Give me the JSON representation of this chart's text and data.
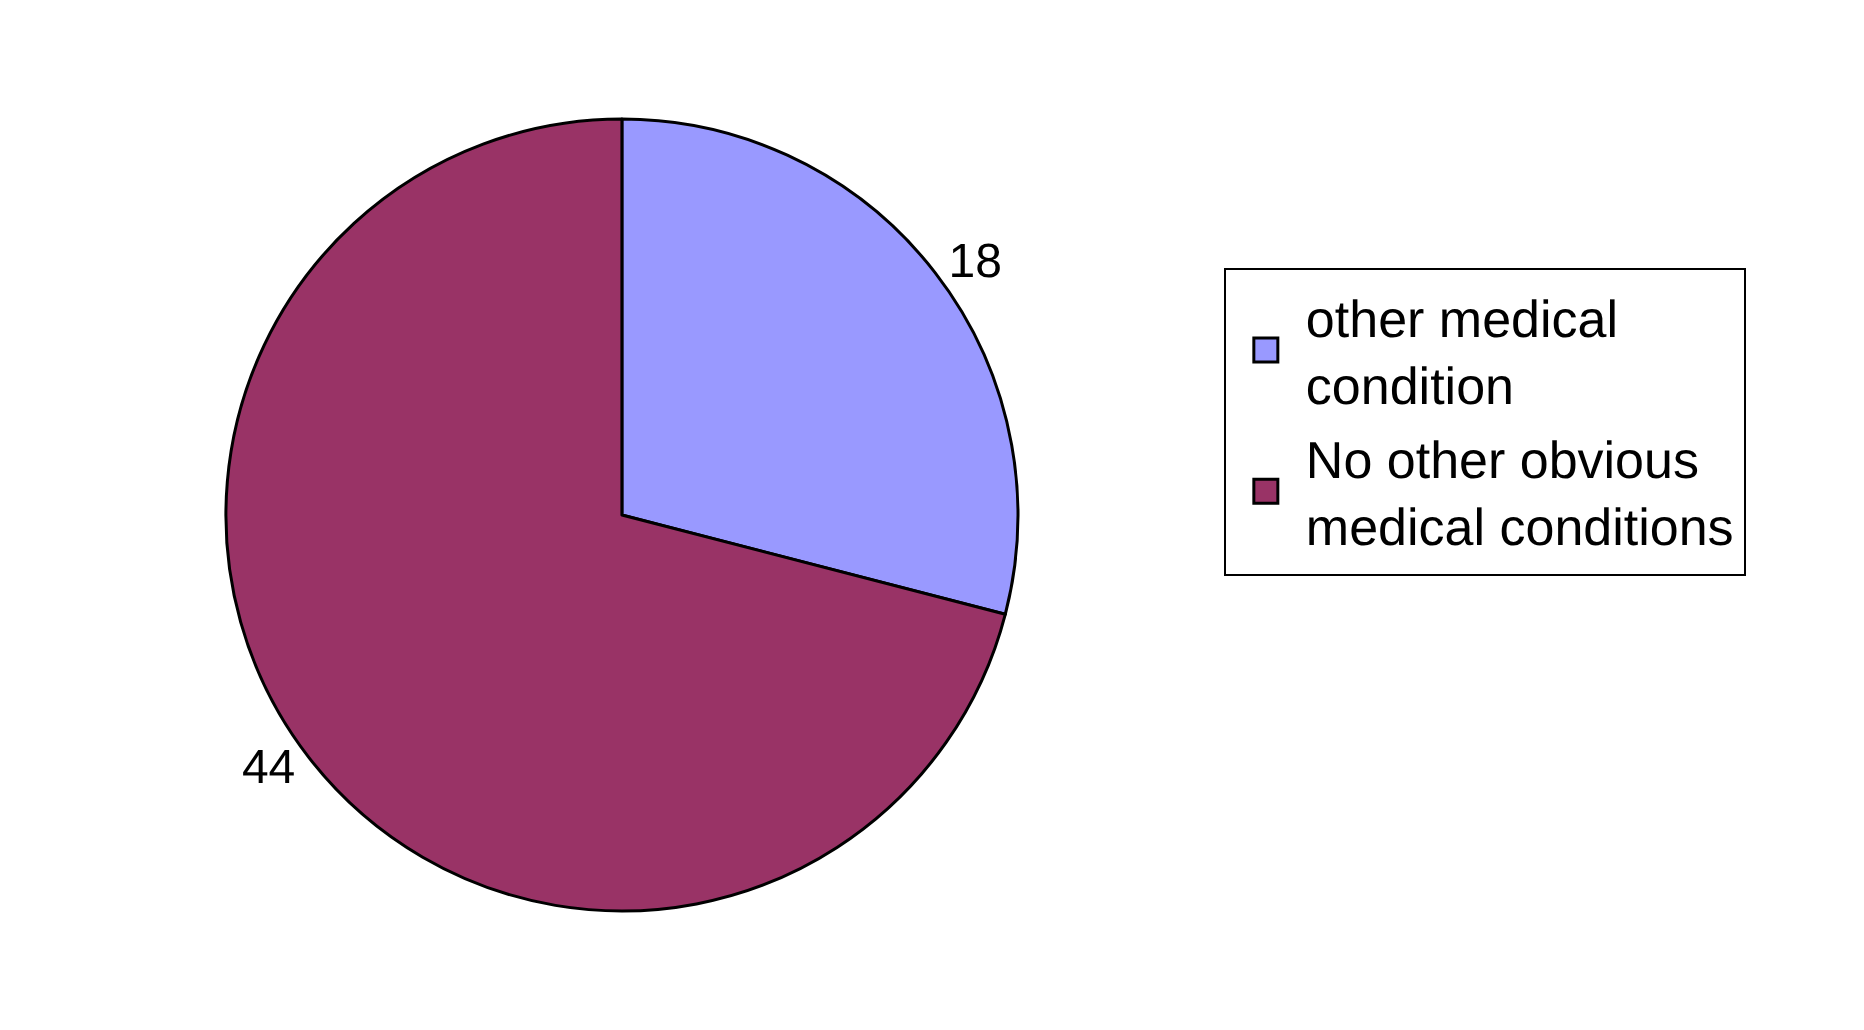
{
  "chart_data": {
    "type": "pie",
    "categories": [
      "other medical condition",
      "No other obvious medical conditions"
    ],
    "values": [
      18,
      44
    ],
    "colors": [
      "#9999ff",
      "#993366"
    ],
    "data_labels": true,
    "legend": "right"
  }
}
